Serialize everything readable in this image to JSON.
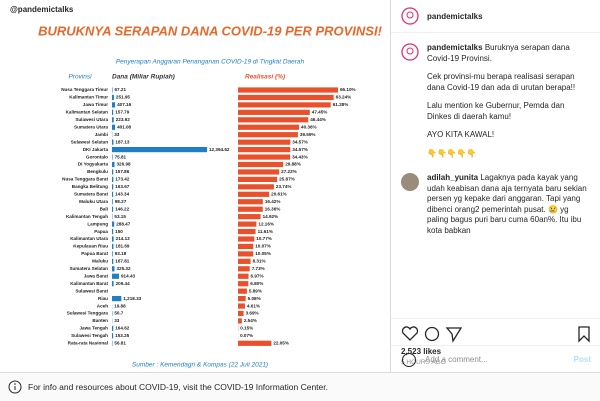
{
  "header": {
    "handle": "@pandemictalks"
  },
  "chart_data": {
    "type": "bar",
    "title": "BURUKNYA SERAPAN DANA COVID-19 PER PROVINSI!",
    "subtitle": "Penyerapan Anggaran Penanganan COVID-19 di Tingkat Daerah",
    "category_label": "Provinsi",
    "source": "Sumber : Kemendagri & Kompas (22 Juli 2021)",
    "categories": [
      "Nusa Tenggara Timur",
      "Kalimantan Timur",
      "Jawa Timur",
      "Kalimantan Selatan",
      "Sulawesi Utara",
      "Sumatera Utara",
      "Jambi",
      "Sulawesi Selatan",
      "DKI Jakarta",
      "Gorontalo",
      "DI Yogyakarta",
      "Bengkulu",
      "Nusa Tenggara Barat",
      "Bangka Belitung",
      "Sumatera Barat",
      "Maluku Utara",
      "Bali",
      "Kalimantan Tengah",
      "Lampung",
      "Papua",
      "Kalimantan Utara",
      "Kepulauan Riau",
      "Papua Barat",
      "Maluku",
      "Sumatera Selatan",
      "Jawa Barat",
      "Kalimantan Barat",
      "Sulawesi Barat",
      "Riau",
      "Aceh",
      "Sulawesi Tenggara",
      "Banten",
      "Jawa Tengah",
      "Sulawesi Tengah",
      "Rata-rata Nasional"
    ],
    "series": [
      {
        "name": "Dana (Miliar Rupiah)",
        "color": "#1f7fc6",
        "values": [
          67.21,
          251.95,
          407.16,
          157.79,
          223.92,
          401.08,
          33,
          187.13,
          12394.62,
          75.81,
          326.98,
          157.86,
          173.42,
          163.67,
          143.34,
          98.27,
          146.22,
          53.15,
          288.47,
          150,
          214.13,
          181.69,
          93.18,
          167.81,
          325.32,
          914.43,
          209.44,
          null,
          1218.33,
          19.88,
          50.7,
          33,
          164.62,
          153.25,
          56.81
        ],
        "value_labels": [
          "67.21",
          "251.95",
          "407.16",
          "157.79",
          "223.92",
          "401.08",
          "33",
          "187.13",
          "12,394.62",
          "75.81",
          "326.98",
          "157.86",
          "173.42",
          "163.67",
          "143.34",
          "98.27",
          "146.22",
          "53.15",
          "288.47",
          "150",
          "214.13",
          "181.69",
          "93.18",
          "167.81",
          "325.32",
          "914.43",
          "209.44",
          null,
          "1,218.33",
          "19.88",
          "50.7",
          "33",
          "164.62",
          "153.25",
          "56.81"
        ]
      },
      {
        "name": "Realisasi (%)",
        "color": "#e8512b",
        "values": [
          66.1,
          63.24,
          61.28,
          47.45,
          46.44,
          40.36,
          39.59,
          34.57,
          34.57,
          34.43,
          29.88,
          27.22,
          25.87,
          23.74,
          20.61,
          16.42,
          16.36,
          14.92,
          12.16,
          11.61,
          10.77,
          10.07,
          10.05,
          8.31,
          7.73,
          6.97,
          6.8,
          5.89,
          5.08,
          4.61,
          3.69,
          2.54,
          0.15,
          0.07,
          22.05
        ],
        "value_labels": [
          "66.10%",
          "63.24%",
          "61.28%",
          "47.45%",
          "46.44%",
          "40.36%",
          "39.59%",
          "34.57%",
          "34.57%",
          "34.43%",
          "29.88%",
          "27.22%",
          "25.87%",
          "23.74%",
          "20.61%",
          "16.42%",
          "16.36%",
          "14.92%",
          "12.16%",
          "11.61%",
          "10.77%",
          "10.07%",
          "10.05%",
          "8.31%",
          "7.73%",
          "6.97%",
          "6.80%",
          "5.89%",
          "5.08%",
          "4.61%",
          "3.69%",
          "2.54%",
          "0.15%",
          "0.07%",
          "22.05%"
        ]
      }
    ]
  },
  "post": {
    "account": "pandemictalks",
    "caption": [
      "Buruknya serapan dana Covid-19 Provinsi.",
      "Cek provinsi-mu berapa realisasi serapan dana Covid-19 dan ada di urutan berapa!!",
      "Lalu mention ke Gubernur, Pemda dan Dinkes di daerah kamu!",
      "AYO KITA KAWAL!",
      "👇👇👇👇👇"
    ],
    "comment": {
      "user": "adilah_yunita",
      "text": "Lagaknya pada kayak yang udah keabisan dana aja ternyata baru sekian persen yg kepake dari anggaran. Tapi yang dibenci orang2 pemerintah pusat. 😢 yg paling bagus puri baru cuma 60an%. Itu ibu kota babkan"
    },
    "likes": "2,523 likes",
    "time": "5 HOURS AGO",
    "add_comment": "Add a comment...",
    "post_button": "Post"
  },
  "footer": {
    "info": "For info and resources about COVID-19, visit the COVID-19 Information Center."
  }
}
